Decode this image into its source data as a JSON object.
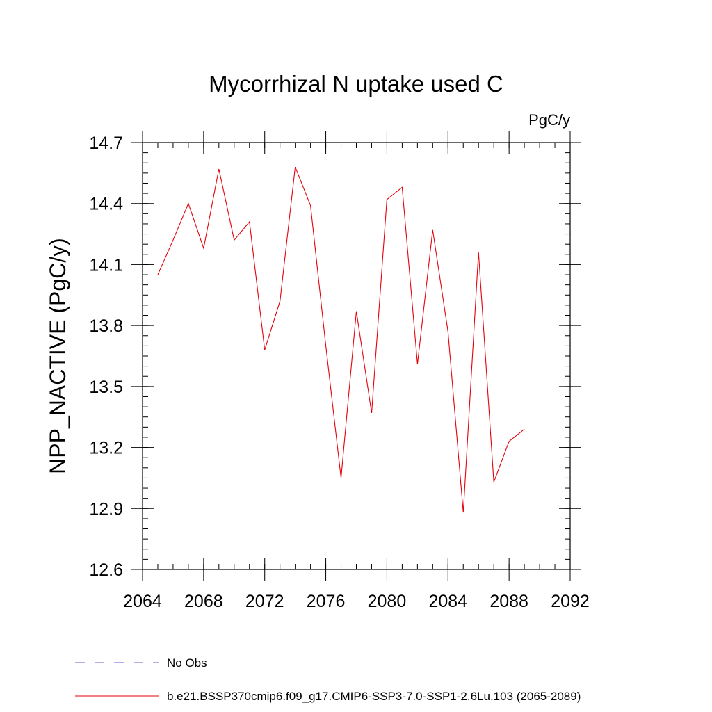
{
  "chart_data": {
    "type": "line",
    "title": "Mycorrhizal N uptake used C",
    "units": "PgC/y",
    "ylabel": "NPP_NACTIVE  (PgC/y)",
    "xlabel": "",
    "xlim": [
      2064,
      2092
    ],
    "ylim": [
      12.6,
      14.7
    ],
    "xticks": [
      "2064",
      "2068",
      "2072",
      "2076",
      "2080",
      "2084",
      "2088",
      "2092"
    ],
    "yticks": [
      "12.6",
      "12.9",
      "13.2",
      "13.5",
      "13.8",
      "14.1",
      "14.4",
      "14.7"
    ],
    "x_minor_step": 1,
    "y_minor_step": 0.05,
    "grid": false,
    "legend_position": "bottom-left",
    "series": [
      {
        "name": "No Obs",
        "color": "#6a5acd",
        "dash": "dashed",
        "x": [],
        "y": []
      },
      {
        "name": "b.e21.BSSP370cmip6.f09_g17.CMIP6-SSP3-7.0-SSP1-2.6Lu.103 (2065-2089)",
        "color": "#e8000b",
        "dash": "solid",
        "x": [
          2065,
          2066,
          2067,
          2068,
          2069,
          2070,
          2071,
          2072,
          2073,
          2074,
          2075,
          2076,
          2077,
          2078,
          2079,
          2080,
          2081,
          2082,
          2083,
          2084,
          2085,
          2086,
          2087,
          2088,
          2089
        ],
        "y": [
          14.05,
          14.22,
          14.4,
          14.18,
          14.57,
          14.22,
          14.31,
          13.68,
          13.92,
          14.58,
          14.39,
          13.7,
          13.05,
          13.87,
          13.37,
          14.42,
          14.48,
          13.61,
          14.27,
          13.77,
          12.88,
          14.16,
          13.03,
          13.23,
          13.29
        ]
      }
    ]
  }
}
